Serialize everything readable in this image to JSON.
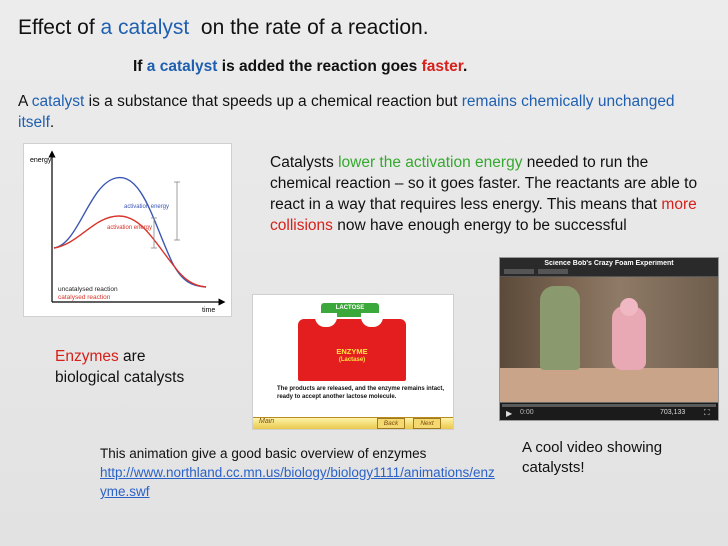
{
  "title": {
    "prefix": "Effect of ",
    "highlight": "a catalyst",
    "suffix": "  on the rate of a reaction."
  },
  "subtitle": {
    "prefix": "If ",
    "highlight": "a catalyst",
    "middle": " is added the reaction goes ",
    "emph": "faster",
    "suffix": "."
  },
  "definition": {
    "prefix": "A ",
    "highlight": "catalyst",
    "middle": " is a substance that speeds up a chemical reaction but ",
    "emph": "remains chemically unchanged itself",
    "suffix": "."
  },
  "graph": {
    "ylabel": "energy",
    "xlabel": "time",
    "uncat_label": "activation energy",
    "cat_label": "activation energy",
    "legend_uncat": "uncatalysed reaction",
    "legend_cat": "catalysed reaction",
    "uncat_color": "#3c57b3",
    "cat_color": "#d8342a"
  },
  "activation_text": {
    "prefix": "Catalysts ",
    "highlight": "lower the activation energy",
    "middle": " needed to run the chemical reaction – so it goes faster. The reactants are able to react in a way that requires less energy. This means that ",
    "emph": "more collisions",
    "suffix": " now have enough energy to be successful"
  },
  "enzymes": {
    "highlight": "Enzymes",
    "line1_suffix": " are",
    "line2": "biological catalysts"
  },
  "animation": {
    "lactose_label": "LACTOSE",
    "enzyme_label": "ENZYME",
    "enzyme_sub": "(Lactase)",
    "caption_text": "The products are released, and the enzyme remains intact, ready to accept another lactose molecule.",
    "btn_main": "Main",
    "btn_back": "Back",
    "btn_next": "Next"
  },
  "video": {
    "title": "Science Bob's Crazy Foam Experiment",
    "views": "703,133",
    "time": "0:00"
  },
  "anim_caption": {
    "text": "This animation give a good basic overview of enzymes",
    "link": "http://www.northland.cc.mn.us/biology/biology1111/animations/enzyme.swf"
  },
  "video_caption": "A cool video showing catalysts!"
}
